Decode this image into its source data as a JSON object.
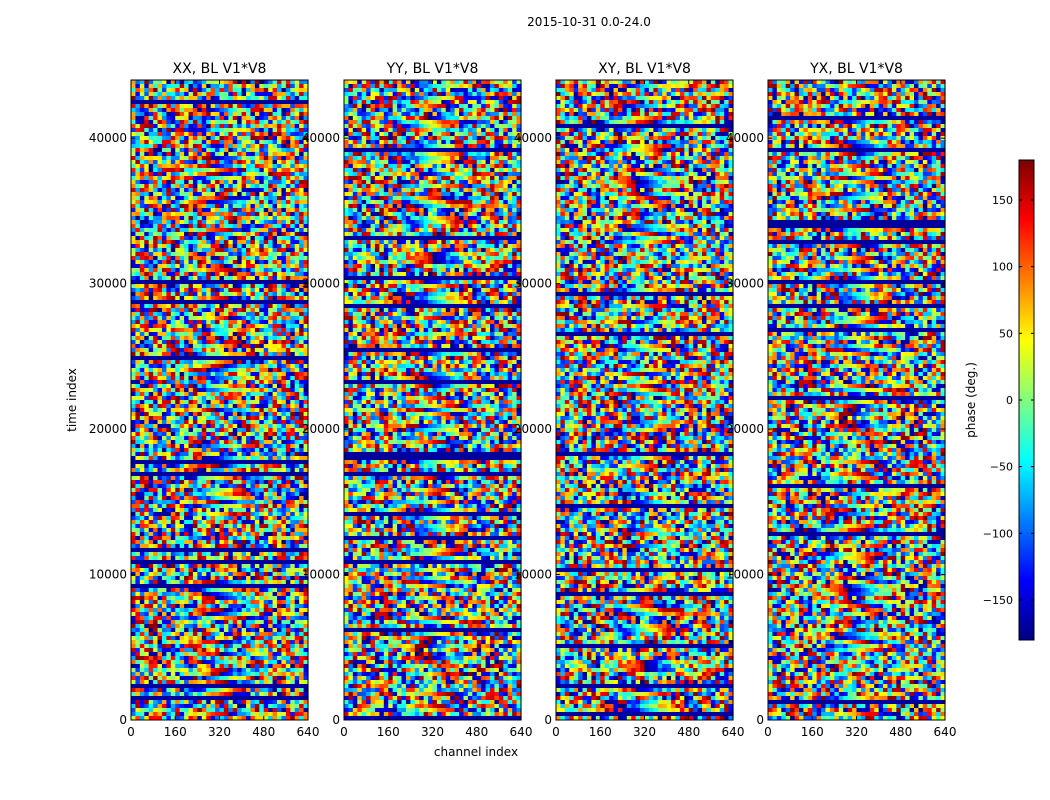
{
  "figure": {
    "suptitle": "2015-10-31 0.0-24.0",
    "xlabel": "channel index",
    "ylabel": "time index",
    "colorbar_label": "phase (deg.)"
  },
  "chart_data": {
    "type": "heatmap",
    "colormap": "jet",
    "x_range": [
      0,
      640
    ],
    "y_range": [
      0,
      44000
    ],
    "x_ticks": [
      0,
      160,
      320,
      480,
      640
    ],
    "y_ticks": [
      0,
      10000,
      20000,
      30000,
      40000
    ],
    "x_tick_labels": [
      "0",
      "160",
      "320",
      "480",
      "640"
    ],
    "y_tick_labels": [
      "0",
      "10000",
      "20000",
      "30000",
      "40000"
    ],
    "color_range": [
      -180,
      180
    ],
    "colorbar_ticks": [
      -150,
      -100,
      -50,
      0,
      50,
      100,
      150
    ],
    "colorbar_tick_labels": [
      "−150",
      "−100",
      "−50",
      "0",
      "50",
      "100",
      "150"
    ],
    "panels": [
      {
        "title": "XX, BL V1*V8"
      },
      {
        "title": "YY, BL V1*V8"
      },
      {
        "title": "XY, BL V1*V8"
      },
      {
        "title": "YX, BL V1*V8"
      }
    ]
  }
}
